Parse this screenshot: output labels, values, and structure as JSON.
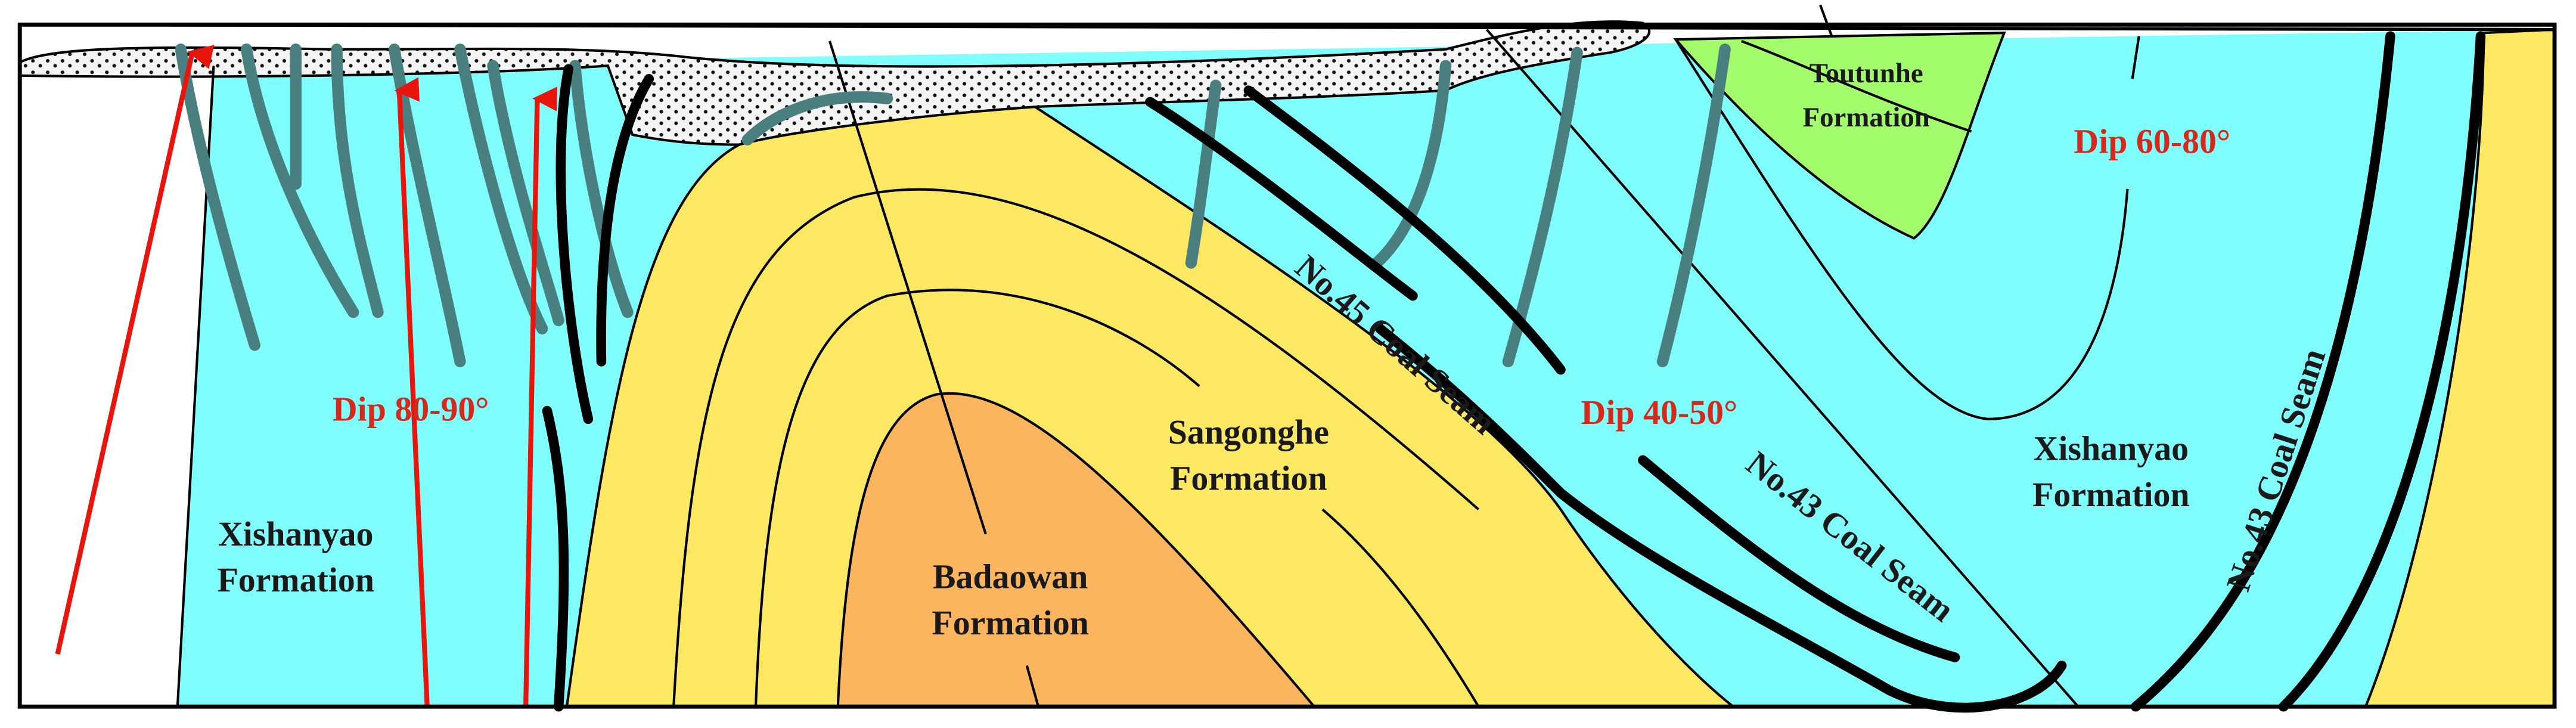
{
  "labels": {
    "xishanyao_left": {
      "lines": [
        "Xishanyao",
        "Formation"
      ]
    },
    "dip_left": "Dip 80-90°",
    "sangonghe": {
      "lines": [
        "Sangonghe",
        "Formation"
      ]
    },
    "badaowan": {
      "lines": [
        "Badaowan",
        "Formation"
      ]
    },
    "coal45": "No.45 Coal Seam",
    "dip_middle": "Dip 40-50°",
    "coal43_middle": "No.43 Coal Seam",
    "xishanyao_right": {
      "lines": [
        "Xishanyao",
        "Formation"
      ]
    },
    "coal43_right": "No.43 Coal Seam",
    "toutunhe": {
      "lines": [
        "Toutunhe",
        "Formation"
      ]
    },
    "dip_right": "Dip 60-80°"
  }
}
